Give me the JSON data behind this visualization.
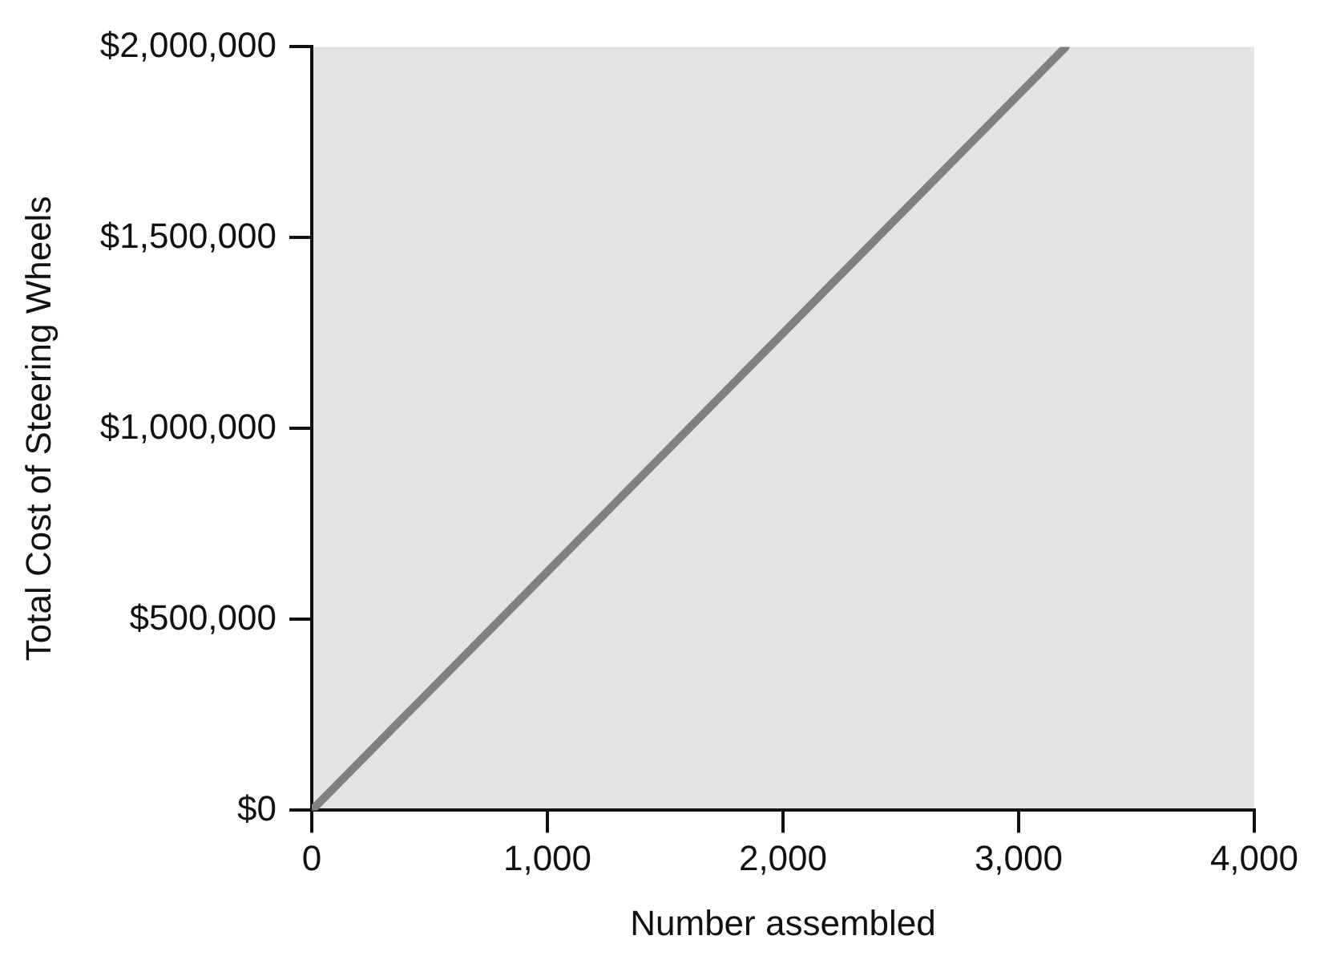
{
  "chart_data": {
    "type": "line",
    "xlabel": "Number assembled",
    "ylabel": "Total Cost of Steering Wheels",
    "series": [
      {
        "color": "#808080",
        "x": [
          0,
          3200
        ],
        "values": [
          0,
          2000000
        ]
      }
    ],
    "xlim": [
      0,
      4000
    ],
    "xticks": [
      0,
      {
        "value": 1000,
        "label": "1,000"
      },
      {
        "value": 2000,
        "label": "2,000"
      },
      {
        "value": 3000,
        "label": "3,000"
      },
      {
        "value": 4000,
        "label": "4,000"
      }
    ],
    "ylim": [
      0,
      2000000
    ],
    "yticks": [
      {
        "value": 0,
        "label": "$0"
      },
      {
        "value": 500000,
        "label": "$500,000"
      },
      {
        "value": 1000000,
        "label": "$1,000,000"
      },
      {
        "value": 1500000,
        "label": "$1,500,000"
      },
      {
        "value": 2000000,
        "label": "$2,000,000"
      }
    ],
    "grid": false,
    "legend": false,
    "marker": "none",
    "line_style": "solid"
  }
}
